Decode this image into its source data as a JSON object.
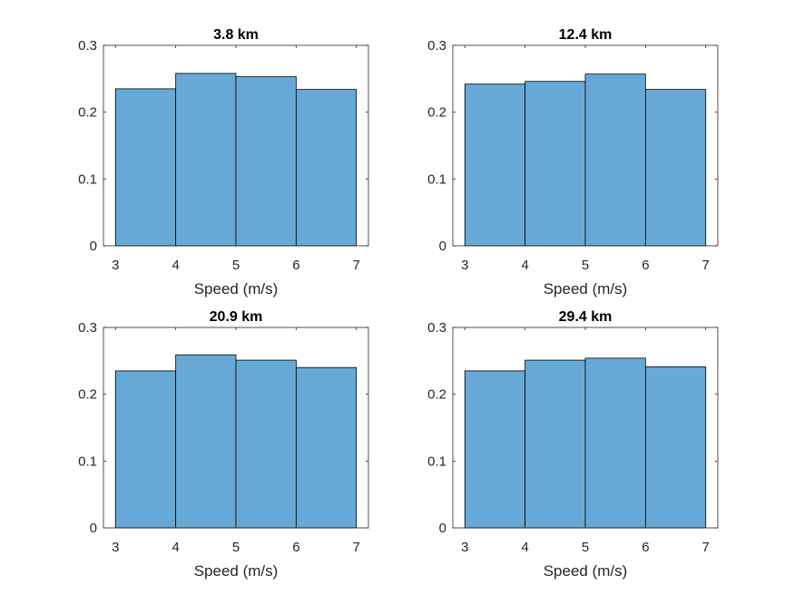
{
  "figure": {
    "bar_color": "#66A9D7",
    "edge_color": "#000000",
    "axis_color": "#262626"
  },
  "chart_data": [
    {
      "type": "bar",
      "title": "3.8 km",
      "xlabel": "Speed (m/s)",
      "ylabel": "",
      "bin_edges": [
        3,
        4,
        5,
        6,
        7
      ],
      "values": [
        0.235,
        0.258,
        0.253,
        0.234
      ],
      "xlim": [
        2.8,
        7.2
      ],
      "ylim": [
        0,
        0.3
      ],
      "xticks": [
        3,
        4,
        5,
        6,
        7
      ],
      "yticks": [
        0,
        0.1,
        0.2,
        0.3
      ],
      "xtick_labels": [
        "3",
        "4",
        "5",
        "6",
        "7"
      ],
      "ytick_labels": [
        "0",
        "0.1",
        "0.2",
        "0.3"
      ],
      "grid": false
    },
    {
      "type": "bar",
      "title": "12.4 km",
      "xlabel": "Speed (m/s)",
      "ylabel": "",
      "bin_edges": [
        3,
        4,
        5,
        6,
        7
      ],
      "values": [
        0.242,
        0.246,
        0.257,
        0.234
      ],
      "xlim": [
        2.8,
        7.2
      ],
      "ylim": [
        0,
        0.3
      ],
      "xticks": [
        3,
        4,
        5,
        6,
        7
      ],
      "yticks": [
        0,
        0.1,
        0.2,
        0.3
      ],
      "xtick_labels": [
        "3",
        "4",
        "5",
        "6",
        "7"
      ],
      "ytick_labels": [
        "0",
        "0.1",
        "0.2",
        "0.3"
      ],
      "grid": false
    },
    {
      "type": "bar",
      "title": "20.9 km",
      "xlabel": "Speed (m/s)",
      "ylabel": "",
      "bin_edges": [
        3,
        4,
        5,
        6,
        7
      ],
      "values": [
        0.235,
        0.259,
        0.251,
        0.24
      ],
      "xlim": [
        2.8,
        7.2
      ],
      "ylim": [
        0,
        0.3
      ],
      "xticks": [
        3,
        4,
        5,
        6,
        7
      ],
      "yticks": [
        0,
        0.1,
        0.2,
        0.3
      ],
      "xtick_labels": [
        "3",
        "4",
        "5",
        "6",
        "7"
      ],
      "ytick_labels": [
        "0",
        "0.1",
        "0.2",
        "0.3"
      ],
      "grid": false
    },
    {
      "type": "bar",
      "title": "29.4 km",
      "xlabel": "Speed (m/s)",
      "ylabel": "",
      "bin_edges": [
        3,
        4,
        5,
        6,
        7
      ],
      "values": [
        0.235,
        0.251,
        0.254,
        0.241
      ],
      "xlim": [
        2.8,
        7.2
      ],
      "ylim": [
        0,
        0.3
      ],
      "xticks": [
        3,
        4,
        5,
        6,
        7
      ],
      "yticks": [
        0,
        0.1,
        0.2,
        0.3
      ],
      "xtick_labels": [
        "3",
        "4",
        "5",
        "6",
        "7"
      ],
      "ytick_labels": [
        "0",
        "0.1",
        "0.2",
        "0.3"
      ],
      "grid": false
    }
  ]
}
